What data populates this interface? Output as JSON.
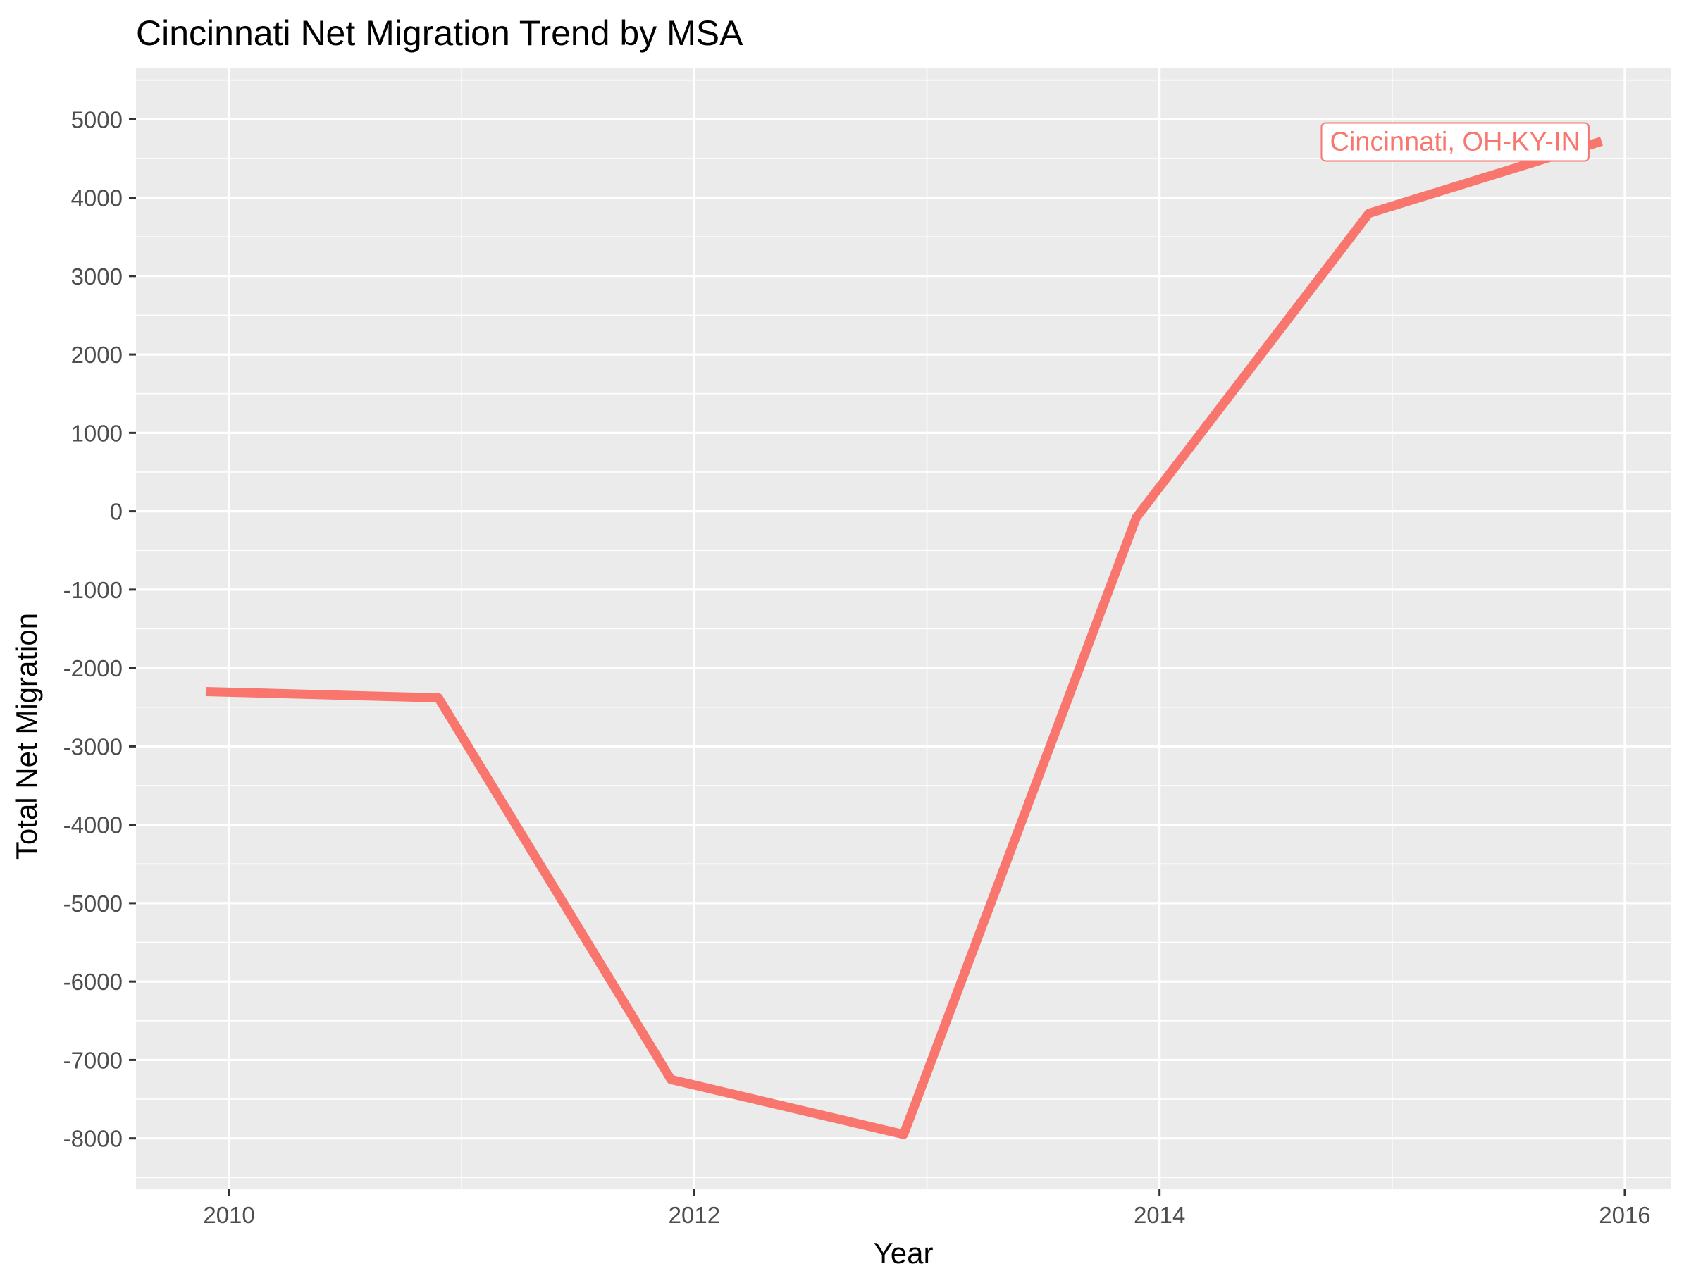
{
  "chart_data": {
    "type": "line",
    "title": "Cincinnati Net Migration Trend by MSA",
    "xlabel": "Year",
    "ylabel": "Total Net Migration",
    "x_ticks": [
      2010,
      2012,
      2014,
      2016
    ],
    "y_ticks": [
      5000,
      4000,
      3000,
      2000,
      1000,
      0,
      -1000,
      -2000,
      -3000,
      -4000,
      -5000,
      -6000,
      -7000,
      -8000
    ],
    "xlim": [
      2009.6,
      2016.2
    ],
    "ylim": [
      -8650,
      5650
    ],
    "grid": true,
    "legend": "none",
    "series": [
      {
        "name": "Cincinnati, OH-KY-IN",
        "color": "#F8766D",
        "x": [
          2009.9,
          2010.9,
          2011.9,
          2012.9,
          2013.9,
          2014.9,
          2015.9
        ],
        "y": [
          -2300,
          -2380,
          -7250,
          -7950,
          -80,
          3800,
          4720
        ]
      }
    ]
  },
  "colors": {
    "panel_background": "#EBEBEB",
    "grid_major": "#FFFFFF",
    "series": "#F8766D"
  }
}
